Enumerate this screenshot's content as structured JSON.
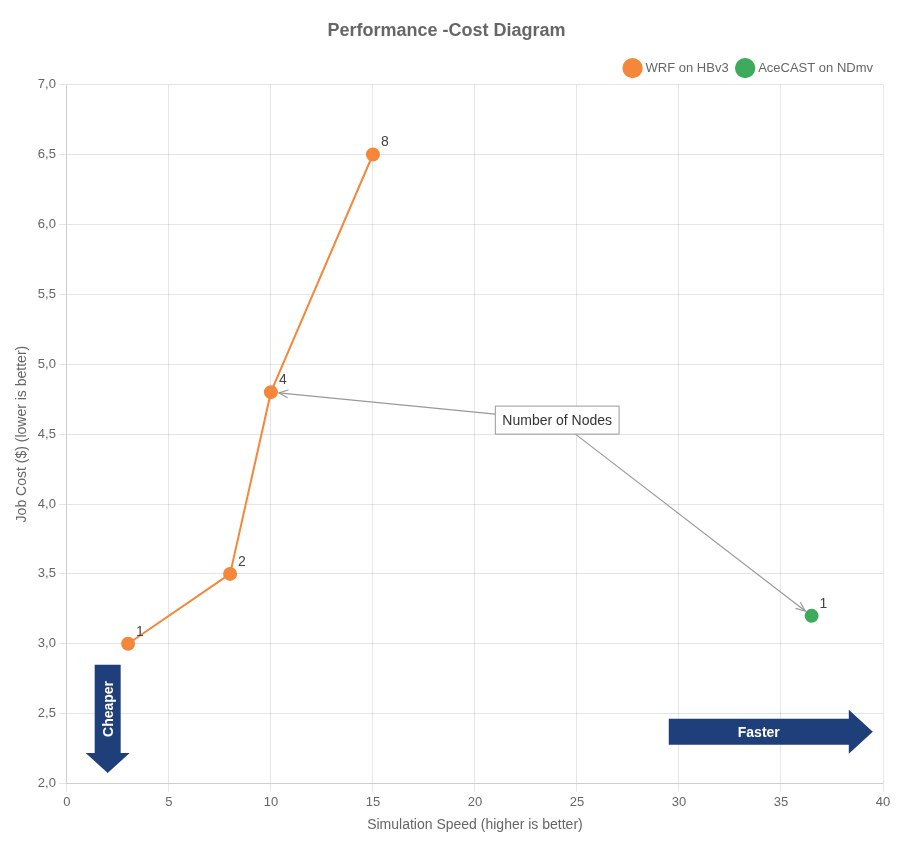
{
  "chart_data": {
    "type": "scatter",
    "title": "Performance -Cost Diagram",
    "x_label": "Simulation Speed (higher is better)",
    "y_label": "Job Cost ($) (lower is better)",
    "xlim": [
      0,
      40
    ],
    "ylim": [
      2.0,
      7.0
    ],
    "xticks": [
      0,
      5,
      10,
      15,
      20,
      25,
      30,
      35,
      40
    ],
    "yticks": [
      {
        "value": 2.0,
        "label": "2,0"
      },
      {
        "value": 2.5,
        "label": "2,5"
      },
      {
        "value": 3.0,
        "label": "3,0"
      },
      {
        "value": 3.5,
        "label": "3,5"
      },
      {
        "value": 4.0,
        "label": "4,0"
      },
      {
        "value": 4.5,
        "label": "4,5"
      },
      {
        "value": 5.0,
        "label": "5,0"
      },
      {
        "value": 5.5,
        "label": "5,5"
      },
      {
        "value": 6.0,
        "label": "6,0"
      },
      {
        "value": 6.5,
        "label": "6,5"
      },
      {
        "value": 7.0,
        "label": "7,0"
      }
    ],
    "grid": true,
    "legend": "upper right",
    "series": [
      {
        "name": "WRF on HBv3",
        "color": "#F4873A",
        "marker": "circle",
        "line_style": "solid",
        "x": [
          3.0,
          8.0,
          10.0,
          15.0
        ],
        "values": [
          3.0,
          3.5,
          4.8,
          6.5
        ],
        "point_labels": [
          "1",
          "2",
          "4",
          "8"
        ]
      },
      {
        "name": "AceCAST on NDmv",
        "color": "#3DAA5C",
        "marker": "circle",
        "line_style": "none",
        "x": [
          36.5
        ],
        "values": [
          3.2
        ],
        "point_labels": [
          "1"
        ]
      }
    ],
    "annotations": [
      {
        "text": "Number of Nodes",
        "color": "#999999",
        "arrows_to": [
          [
            10.0,
            4.8
          ],
          [
            36.5,
            3.2
          ]
        ]
      },
      {
        "text": "Cheaper",
        "color": "#1F3F7A"
      },
      {
        "text": "Faster",
        "color": "#1F3F7A"
      }
    ]
  }
}
